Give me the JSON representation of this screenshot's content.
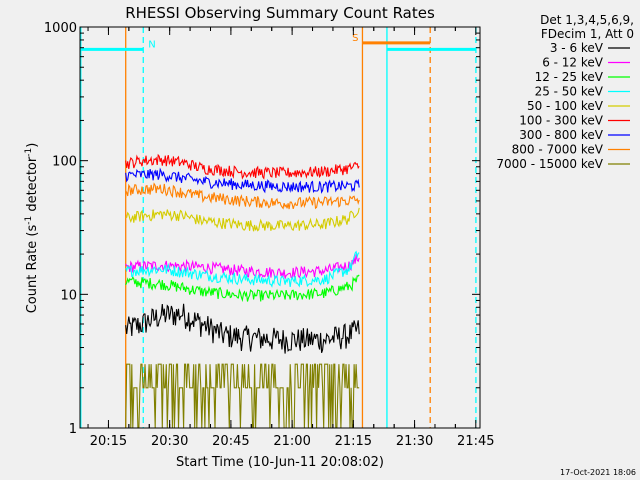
{
  "chart_data": {
    "type": "line",
    "title": "RHESSI Observing Summary Count Rates",
    "xlabel": "Start Time (10-Jun-11 20:08:02)",
    "ylabel_main": "Count Rate (s",
    "ylabel_sup1": "-1",
    "ylabel_mid": " detector",
    "ylabel_sup2": "-1",
    "ylabel_end": ")",
    "yscale": "log",
    "ylim": [
      1,
      1000
    ],
    "xlim_minutes": [
      0,
      98
    ],
    "x_ticks": [
      {
        "label": "20:15",
        "min": 6.97
      },
      {
        "label": "20:30",
        "min": 21.97
      },
      {
        "label": "20:45",
        "min": 36.97
      },
      {
        "label": "21:00",
        "min": 51.97
      },
      {
        "label": "21:15",
        "min": 66.97
      },
      {
        "label": "21:30",
        "min": 81.97
      },
      {
        "label": "21:45",
        "min": 96.97
      }
    ],
    "y_ticks": [
      {
        "label": "1",
        "value": 1
      },
      {
        "label": "10",
        "value": 10
      },
      {
        "label": "100",
        "value": 100
      },
      {
        "label": "1000",
        "value": 1000
      }
    ],
    "data_range_minutes": [
      11.2,
      68.4
    ],
    "legend_header": [
      "Det 1,3,4,5,6,9,",
      "FDecim 1, Att 0"
    ],
    "series": [
      {
        "name": "3 - 6 keV",
        "color": "#000000",
        "x": [
          11.2,
          15,
          20,
          25,
          30,
          35,
          40,
          50,
          60,
          66,
          68.4
        ],
        "values": [
          5.5,
          6.0,
          7.0,
          7.2,
          6.0,
          5.0,
          4.8,
          4.6,
          4.6,
          5.0,
          5.5
        ]
      },
      {
        "name": "6 - 12 keV",
        "color": "#ff00ff",
        "x": [
          11.2,
          20,
          30,
          40,
          50,
          60,
          66,
          68.4
        ],
        "values": [
          16,
          16.5,
          16,
          15,
          14.5,
          15,
          16.5,
          19
        ]
      },
      {
        "name": "12 - 25 keV",
        "color": "#00ff00",
        "x": [
          11.2,
          20,
          30,
          40,
          50,
          60,
          66,
          68.4
        ],
        "values": [
          12.5,
          12,
          10.5,
          9.8,
          9.8,
          10.2,
          11.5,
          13
        ]
      },
      {
        "name": "25 - 50 keV",
        "color": "#00ffff",
        "x": [
          11.2,
          20,
          30,
          40,
          50,
          60,
          66,
          68.4
        ],
        "values": [
          15,
          15.5,
          14,
          13,
          12.5,
          13,
          15.5,
          21
        ]
      },
      {
        "name": "50 - 100 keV",
        "color": "#d4cc00",
        "x": [
          11.2,
          15,
          20,
          25,
          30,
          40,
          50,
          60,
          66,
          68.4
        ],
        "values": [
          37,
          38.5,
          40,
          39,
          35.5,
          33,
          32.5,
          33.5,
          37,
          45
        ]
      },
      {
        "name": "100 - 300 keV",
        "color": "#ff0000",
        "x": [
          11.2,
          15,
          20,
          25,
          30,
          40,
          50,
          60,
          66,
          68.4
        ],
        "values": [
          95,
          100,
          102,
          97,
          88,
          82,
          81,
          83,
          88,
          91
        ]
      },
      {
        "name": "300 - 800 keV",
        "color": "#0000ff",
        "x": [
          11.2,
          20,
          30,
          40,
          50,
          60,
          68.4
        ],
        "values": [
          78,
          79,
          70,
          66,
          64,
          64,
          65
        ]
      },
      {
        "name": "800 - 7000 keV",
        "color": "#ff8000",
        "x": [
          11.2,
          20,
          30,
          40,
          50,
          60,
          68.4
        ],
        "values": [
          60,
          62,
          54,
          50,
          48,
          49,
          51
        ]
      },
      {
        "name": "7000 - 15000 keV",
        "color": "#808000",
        "x": [
          11.2,
          20,
          30,
          40,
          50,
          60,
          68.4
        ],
        "values": [
          2,
          2,
          2,
          2,
          2,
          2,
          2
        ],
        "upper": 3
      }
    ],
    "flags": [
      {
        "label": "N",
        "color": "#00ffff",
        "x_start": 0,
        "x_end": 15.5,
        "level": 680,
        "dashed": false
      },
      {
        "label": "S",
        "color": "#ff8000",
        "x_start": 69.2,
        "x_end": 85.8,
        "level": 760,
        "dashed": false
      },
      {
        "label": "",
        "color": "#00ffff",
        "x_start": 75.2,
        "x_end": 97.0,
        "level": 680,
        "dashed": false
      }
    ],
    "vlines": [
      {
        "x": 0.2,
        "color": "#00ffff",
        "dashed": false
      },
      {
        "x": 15.5,
        "color": "#00ffff",
        "dashed": true
      },
      {
        "x": 11.2,
        "color": "#ff8000",
        "dashed": false
      },
      {
        "x": 69.2,
        "color": "#ff8000",
        "dashed": false
      },
      {
        "x": 75.2,
        "color": "#00ffff",
        "dashed": false
      },
      {
        "x": 85.8,
        "color": "#ff8000",
        "dashed": true
      },
      {
        "x": 97.0,
        "color": "#00ffff",
        "dashed": true
      }
    ]
  },
  "footer": {
    "date": "17-Oct-2021 18:06"
  }
}
